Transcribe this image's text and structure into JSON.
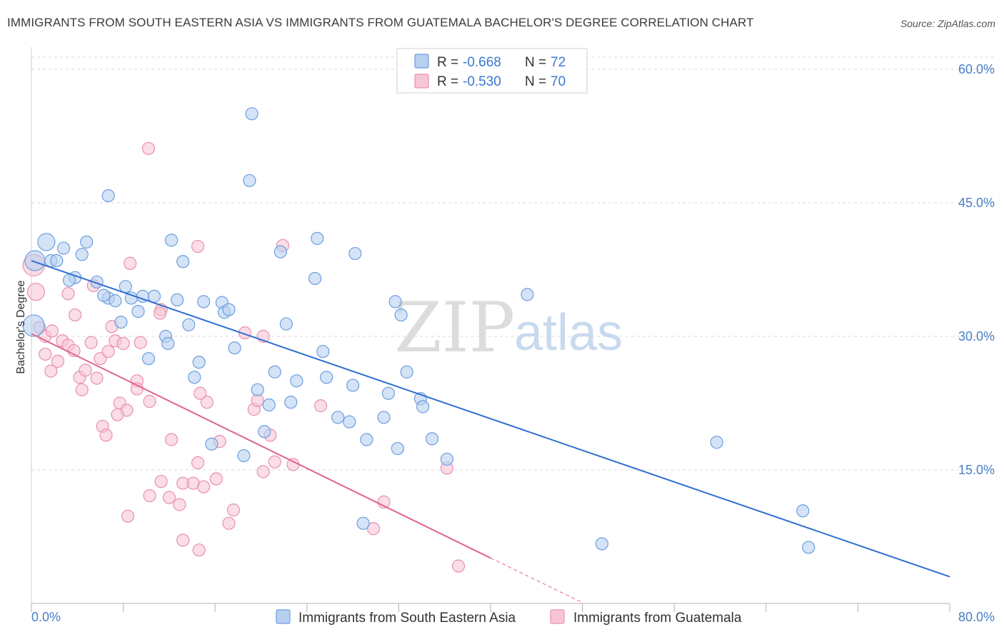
{
  "header": {
    "title": "IMMIGRANTS FROM SOUTH EASTERN ASIA VS IMMIGRANTS FROM GUATEMALA BACHELOR'S DEGREE CORRELATION CHART",
    "source": "Source: ZipAtlas.com"
  },
  "watermark": {
    "zip": "ZIP",
    "atlas": "atlas"
  },
  "colors": {
    "blue_fill": "#b7d0f0",
    "blue_stroke": "#6d9ee0",
    "blue_line": "#2f6fd0",
    "pink_fill": "#f7c6d6",
    "pink_stroke": "#ea8fb0",
    "pink_line": "#e0648f",
    "grid": "#d9d9d9",
    "tick_text": "#4a7fc7"
  },
  "legend": {
    "rows": [
      {
        "r_label": "R =",
        "r_value": "-0.668",
        "n_label": "N =",
        "n_value": "72"
      },
      {
        "r_label": "R =",
        "r_value": "-0.530",
        "n_label": "N =",
        "n_value": "70"
      }
    ]
  },
  "chart_data": {
    "type": "scatter",
    "title": "IMMIGRANTS FROM SOUTH EASTERN ASIA VS IMMIGRANTS FROM GUATEMALA BACHELOR'S DEGREE CORRELATION CHART",
    "xlabel": "",
    "ylabel": "Bachelor's Degree",
    "xlim": [
      0,
      80
    ],
    "ylim": [
      0,
      60
    ],
    "x_tick_labels": [
      "0.0%",
      "80.0%"
    ],
    "y_ticks": [
      15,
      30,
      45,
      60
    ],
    "y_tick_labels": [
      "15.0%",
      "30.0%",
      "45.0%",
      "60.0%"
    ],
    "grid": "horizontal dashed",
    "legend_position": "top-center",
    "series": [
      {
        "name": "Immigrants from South Eastern Asia",
        "color": "#6d9ee0",
        "r": -0.668,
        "n": 72,
        "trend": {
          "x": [
            0,
            80
          ],
          "y": [
            38.5,
            3.0
          ]
        },
        "points": [
          [
            1.3,
            40.6
          ],
          [
            2.8,
            39.9
          ],
          [
            1.7,
            38.5
          ],
          [
            2.2,
            38.5
          ],
          [
            4.4,
            39.2
          ],
          [
            4.8,
            40.6
          ],
          [
            6.7,
            45.8
          ],
          [
            3.8,
            36.6
          ],
          [
            3.3,
            36.3
          ],
          [
            5.7,
            36.1
          ],
          [
            6.7,
            34.3
          ],
          [
            6.3,
            34.6
          ],
          [
            7.3,
            34.0
          ],
          [
            8.2,
            35.6
          ],
          [
            8.7,
            34.3
          ],
          [
            9.7,
            34.5
          ],
          [
            10.7,
            34.5
          ],
          [
            12.7,
            34.1
          ],
          [
            7.8,
            31.6
          ],
          [
            9.3,
            32.8
          ],
          [
            11.7,
            30.0
          ],
          [
            11.9,
            29.2
          ],
          [
            12.2,
            40.8
          ],
          [
            13.2,
            38.4
          ],
          [
            13.7,
            31.3
          ],
          [
            14.6,
            27.1
          ],
          [
            14.2,
            25.4
          ],
          [
            15.0,
            33.9
          ],
          [
            16.6,
            33.8
          ],
          [
            16.8,
            32.7
          ],
          [
            17.2,
            33.0
          ],
          [
            17.7,
            28.7
          ],
          [
            10.2,
            27.5
          ],
          [
            19.0,
            47.5
          ],
          [
            19.2,
            55.0
          ],
          [
            21.7,
            39.5
          ],
          [
            22.2,
            31.4
          ],
          [
            24.7,
            36.5
          ],
          [
            24.9,
            41.0
          ],
          [
            25.4,
            28.3
          ],
          [
            25.7,
            25.4
          ],
          [
            28.2,
            39.3
          ],
          [
            28.0,
            24.5
          ],
          [
            26.7,
            20.9
          ],
          [
            27.7,
            20.4
          ],
          [
            29.2,
            18.4
          ],
          [
            30.7,
            20.9
          ],
          [
            31.1,
            23.6
          ],
          [
            31.9,
            17.4
          ],
          [
            31.7,
            33.9
          ],
          [
            32.2,
            32.4
          ],
          [
            32.7,
            26.0
          ],
          [
            33.9,
            23.0
          ],
          [
            34.1,
            22.1
          ],
          [
            34.9,
            18.5
          ],
          [
            36.2,
            16.2
          ],
          [
            19.7,
            24.0
          ],
          [
            20.7,
            22.3
          ],
          [
            20.3,
            19.3
          ],
          [
            21.2,
            26.0
          ],
          [
            22.6,
            22.6
          ],
          [
            23.1,
            25.0
          ],
          [
            18.5,
            16.6
          ],
          [
            15.7,
            17.9
          ],
          [
            43.2,
            34.7
          ],
          [
            59.7,
            18.1
          ],
          [
            67.2,
            10.4
          ],
          [
            49.7,
            6.7
          ],
          [
            67.7,
            6.3
          ],
          [
            28.9,
            9.0
          ],
          [
            0.2,
            31.2
          ],
          [
            0.3,
            38.5
          ]
        ]
      },
      {
        "name": "Immigrants from Guatemala",
        "color": "#ea8fb0",
        "r": -0.53,
        "n": 70,
        "trend": {
          "x": [
            0,
            40,
            48
          ],
          "y": [
            30.3,
            5.1,
            0.1
          ]
        },
        "points": [
          [
            0.2,
            38.0
          ],
          [
            0.4,
            35.0
          ],
          [
            0.7,
            31.0
          ],
          [
            1.2,
            30.0
          ],
          [
            1.8,
            30.6
          ],
          [
            1.2,
            28.0
          ],
          [
            2.3,
            27.2
          ],
          [
            2.7,
            29.5
          ],
          [
            3.2,
            29.0
          ],
          [
            3.7,
            28.4
          ],
          [
            1.7,
            26.1
          ],
          [
            3.2,
            34.8
          ],
          [
            3.8,
            32.4
          ],
          [
            4.2,
            25.4
          ],
          [
            4.4,
            24.0
          ],
          [
            4.7,
            26.2
          ],
          [
            5.2,
            29.3
          ],
          [
            5.4,
            35.7
          ],
          [
            5.7,
            25.3
          ],
          [
            6.0,
            27.5
          ],
          [
            6.7,
            28.3
          ],
          [
            7.0,
            31.1
          ],
          [
            7.3,
            29.5
          ],
          [
            8.0,
            29.2
          ],
          [
            8.6,
            38.2
          ],
          [
            9.5,
            29.3
          ],
          [
            9.2,
            25.0
          ],
          [
            9.2,
            24.1
          ],
          [
            10.3,
            22.7
          ],
          [
            11.3,
            33.0
          ],
          [
            11.2,
            32.6
          ],
          [
            7.7,
            22.5
          ],
          [
            8.3,
            21.7
          ],
          [
            7.5,
            21.2
          ],
          [
            6.2,
            19.9
          ],
          [
            6.5,
            18.9
          ],
          [
            10.2,
            51.1
          ],
          [
            14.5,
            40.1
          ],
          [
            14.7,
            23.6
          ],
          [
            15.3,
            22.6
          ],
          [
            12.2,
            18.4
          ],
          [
            13.2,
            13.5
          ],
          [
            14.1,
            13.5
          ],
          [
            12.0,
            11.9
          ],
          [
            12.9,
            11.1
          ],
          [
            11.3,
            13.7
          ],
          [
            10.3,
            12.1
          ],
          [
            8.4,
            9.8
          ],
          [
            15.0,
            13.1
          ],
          [
            16.1,
            14.0
          ],
          [
            16.4,
            18.2
          ],
          [
            17.2,
            9.0
          ],
          [
            17.6,
            10.5
          ],
          [
            14.5,
            15.8
          ],
          [
            13.2,
            7.1
          ],
          [
            14.6,
            6.0
          ],
          [
            18.6,
            30.4
          ],
          [
            19.4,
            21.8
          ],
          [
            19.7,
            22.8
          ],
          [
            20.2,
            30.0
          ],
          [
            20.8,
            18.9
          ],
          [
            20.2,
            14.8
          ],
          [
            21.2,
            15.9
          ],
          [
            21.9,
            40.2
          ],
          [
            22.8,
            15.6
          ],
          [
            25.2,
            22.2
          ],
          [
            29.8,
            8.4
          ],
          [
            30.7,
            11.4
          ],
          [
            36.2,
            15.2
          ],
          [
            37.2,
            4.2
          ]
        ]
      }
    ]
  },
  "bottom_legend": {
    "items": [
      {
        "label": "Immigrants from South Eastern Asia"
      },
      {
        "label": "Immigrants from Guatemala"
      }
    ]
  }
}
